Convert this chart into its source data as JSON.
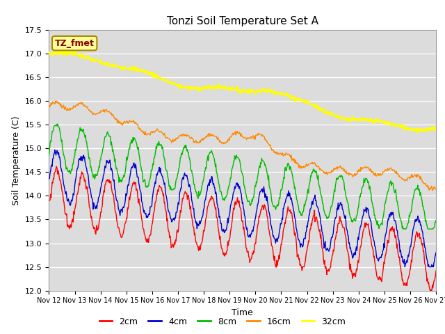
{
  "title": "Tonzi Soil Temperature Set A",
  "xlabel": "Time",
  "ylabel": "Soil Temperature (C)",
  "ylim": [
    12.0,
    17.5
  ],
  "plot_bg_color": "#dcdcdc",
  "series_colors": {
    "2cm": "#ff0000",
    "4cm": "#0000cc",
    "8cm": "#00bb00",
    "16cm": "#ff8800",
    "32cm": "#ffff00"
  },
  "legend_label": "TZ_fmet",
  "legend_box_color": "#ffff99",
  "legend_box_border": "#aa8800",
  "legend_text_color": "#880000",
  "tick_labels": [
    "Nov 12",
    "Nov 13",
    "Nov 14",
    "Nov 15",
    "Nov 16",
    "Nov 17",
    "Nov 18",
    "Nov 19",
    "Nov 20",
    "Nov 21",
    "Nov 22",
    "Nov 23",
    "Nov 24",
    "Nov 25",
    "Nov 26",
    "Nov 27"
  ],
  "yticks": [
    12.0,
    12.5,
    13.0,
    13.5,
    14.0,
    14.5,
    15.0,
    15.5,
    16.0,
    16.5,
    17.0,
    17.5
  ]
}
